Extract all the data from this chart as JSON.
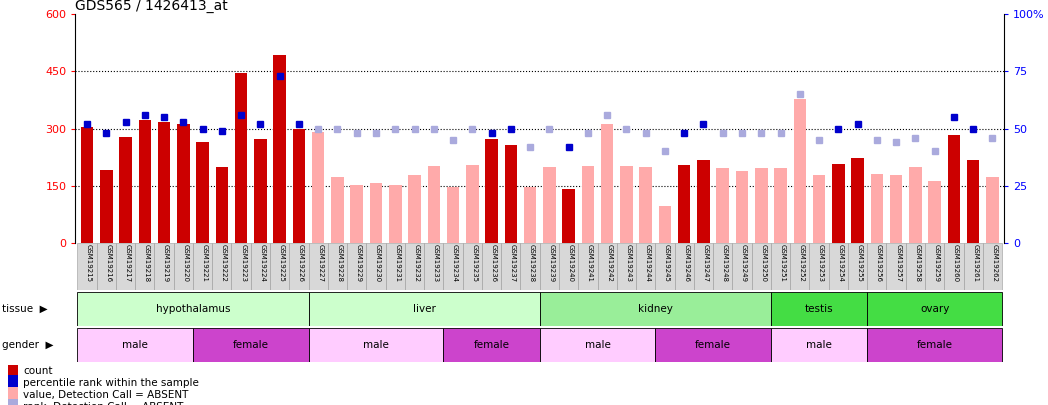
{
  "title": "GDS565 / 1426413_at",
  "samples": [
    "GSM19215",
    "GSM19216",
    "GSM19217",
    "GSM19218",
    "GSM19219",
    "GSM19220",
    "GSM19221",
    "GSM19222",
    "GSM19223",
    "GSM19224",
    "GSM19225",
    "GSM19226",
    "GSM19227",
    "GSM19228",
    "GSM19229",
    "GSM19230",
    "GSM19231",
    "GSM19232",
    "GSM19233",
    "GSM19234",
    "GSM19235",
    "GSM19236",
    "GSM19237",
    "GSM19238",
    "GSM19239",
    "GSM19240",
    "GSM19241",
    "GSM19242",
    "GSM19243",
    "GSM19244",
    "GSM19245",
    "GSM19246",
    "GSM19247",
    "GSM19248",
    "GSM19249",
    "GSM19250",
    "GSM19251",
    "GSM19252",
    "GSM19253",
    "GSM19254",
    "GSM19255",
    "GSM19256",
    "GSM19257",
    "GSM19258",
    "GSM19259",
    "GSM19260",
    "GSM19261",
    "GSM19262"
  ],
  "count_values": [
    305,
    192,
    278,
    322,
    318,
    312,
    265,
    198,
    447,
    272,
    492,
    298,
    292,
    172,
    152,
    157,
    153,
    178,
    202,
    148,
    205,
    272,
    256,
    148,
    198,
    142,
    202,
    313,
    202,
    198,
    98,
    205,
    218,
    197,
    188,
    197,
    197,
    378,
    178,
    208,
    222,
    182,
    178,
    198,
    162,
    282,
    218,
    172
  ],
  "count_absent": [
    false,
    false,
    false,
    false,
    false,
    false,
    false,
    false,
    false,
    false,
    false,
    false,
    true,
    true,
    true,
    true,
    true,
    true,
    true,
    true,
    true,
    false,
    false,
    true,
    true,
    false,
    true,
    true,
    true,
    true,
    true,
    false,
    false,
    true,
    true,
    true,
    true,
    true,
    true,
    false,
    false,
    true,
    true,
    true,
    true,
    false,
    false,
    true
  ],
  "rank_values": [
    52,
    48,
    53,
    56,
    55,
    53,
    50,
    49,
    56,
    52,
    73,
    52,
    50,
    50,
    48,
    48,
    50,
    50,
    50,
    45,
    50,
    48,
    50,
    42,
    50,
    42,
    48,
    56,
    50,
    48,
    40,
    48,
    52,
    48,
    48,
    48,
    48,
    65,
    45,
    50,
    52,
    45,
    44,
    46,
    40,
    55,
    50,
    46
  ],
  "rank_absent": [
    false,
    false,
    false,
    false,
    false,
    false,
    false,
    false,
    false,
    false,
    false,
    false,
    true,
    true,
    true,
    true,
    true,
    true,
    true,
    true,
    true,
    false,
    false,
    true,
    true,
    false,
    true,
    true,
    true,
    true,
    true,
    false,
    false,
    true,
    true,
    true,
    true,
    true,
    true,
    false,
    false,
    true,
    true,
    true,
    true,
    false,
    false,
    true
  ],
  "tissue_groups": [
    {
      "label": "hypothalamus",
      "start": 0,
      "end": 11,
      "color": "#ccffcc"
    },
    {
      "label": "liver",
      "start": 12,
      "end": 23,
      "color": "#ccffcc"
    },
    {
      "label": "kidney",
      "start": 24,
      "end": 35,
      "color": "#99ee99"
    },
    {
      "label": "testis",
      "start": 36,
      "end": 40,
      "color": "#44dd44"
    },
    {
      "label": "ovary",
      "start": 41,
      "end": 47,
      "color": "#44dd44"
    }
  ],
  "gender_groups": [
    {
      "label": "male",
      "start": 0,
      "end": 5,
      "color": "#ffccff"
    },
    {
      "label": "female",
      "start": 6,
      "end": 11,
      "color": "#cc44cc"
    },
    {
      "label": "male",
      "start": 12,
      "end": 18,
      "color": "#ffccff"
    },
    {
      "label": "female",
      "start": 19,
      "end": 23,
      "color": "#cc44cc"
    },
    {
      "label": "male",
      "start": 24,
      "end": 29,
      "color": "#ffccff"
    },
    {
      "label": "female",
      "start": 30,
      "end": 35,
      "color": "#cc44cc"
    },
    {
      "label": "male",
      "start": 36,
      "end": 40,
      "color": "#ffccff"
    },
    {
      "label": "female",
      "start": 41,
      "end": 47,
      "color": "#cc44cc"
    }
  ],
  "ylim_left": [
    0,
    600
  ],
  "ylim_right": [
    0,
    100
  ],
  "yticks_left": [
    0,
    150,
    300,
    450,
    600
  ],
  "yticks_right": [
    0,
    25,
    50,
    75,
    100
  ],
  "bar_color_present": "#cc0000",
  "bar_color_absent": "#ffaaaa",
  "dot_color_present": "#0000cc",
  "dot_color_absent": "#aaaadd",
  "cell_bg": "#d8d8d8",
  "legend_items": [
    {
      "color": "#cc0000",
      "label": "count"
    },
    {
      "color": "#0000cc",
      "label": "percentile rank within the sample"
    },
    {
      "color": "#ffaaaa",
      "label": "value, Detection Call = ABSENT"
    },
    {
      "color": "#aaaadd",
      "label": "rank, Detection Call = ABSENT"
    }
  ]
}
